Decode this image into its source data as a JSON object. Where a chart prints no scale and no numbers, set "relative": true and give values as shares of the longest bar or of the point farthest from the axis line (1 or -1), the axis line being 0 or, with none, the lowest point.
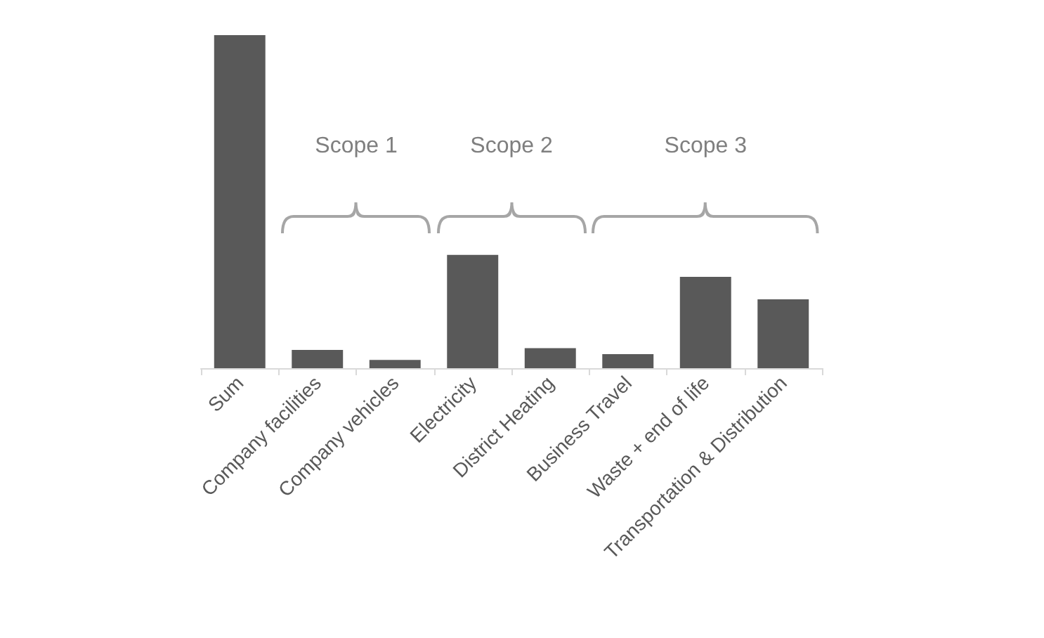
{
  "chart_data": {
    "type": "bar",
    "relative": true,
    "categories": [
      "Sum",
      "Company facilities",
      "Company vehicles",
      "Electricity",
      "District Heating",
      "Business Travel",
      "Waste + end of life",
      "Transportation & Distribution"
    ],
    "values": [
      1,
      0.055,
      0.025,
      0.34,
      0.06,
      0.042,
      0.274,
      0.207
    ],
    "color": "#595959",
    "annotations": [
      "Scope 1",
      "Scope 2",
      "Scope 3"
    ]
  }
}
